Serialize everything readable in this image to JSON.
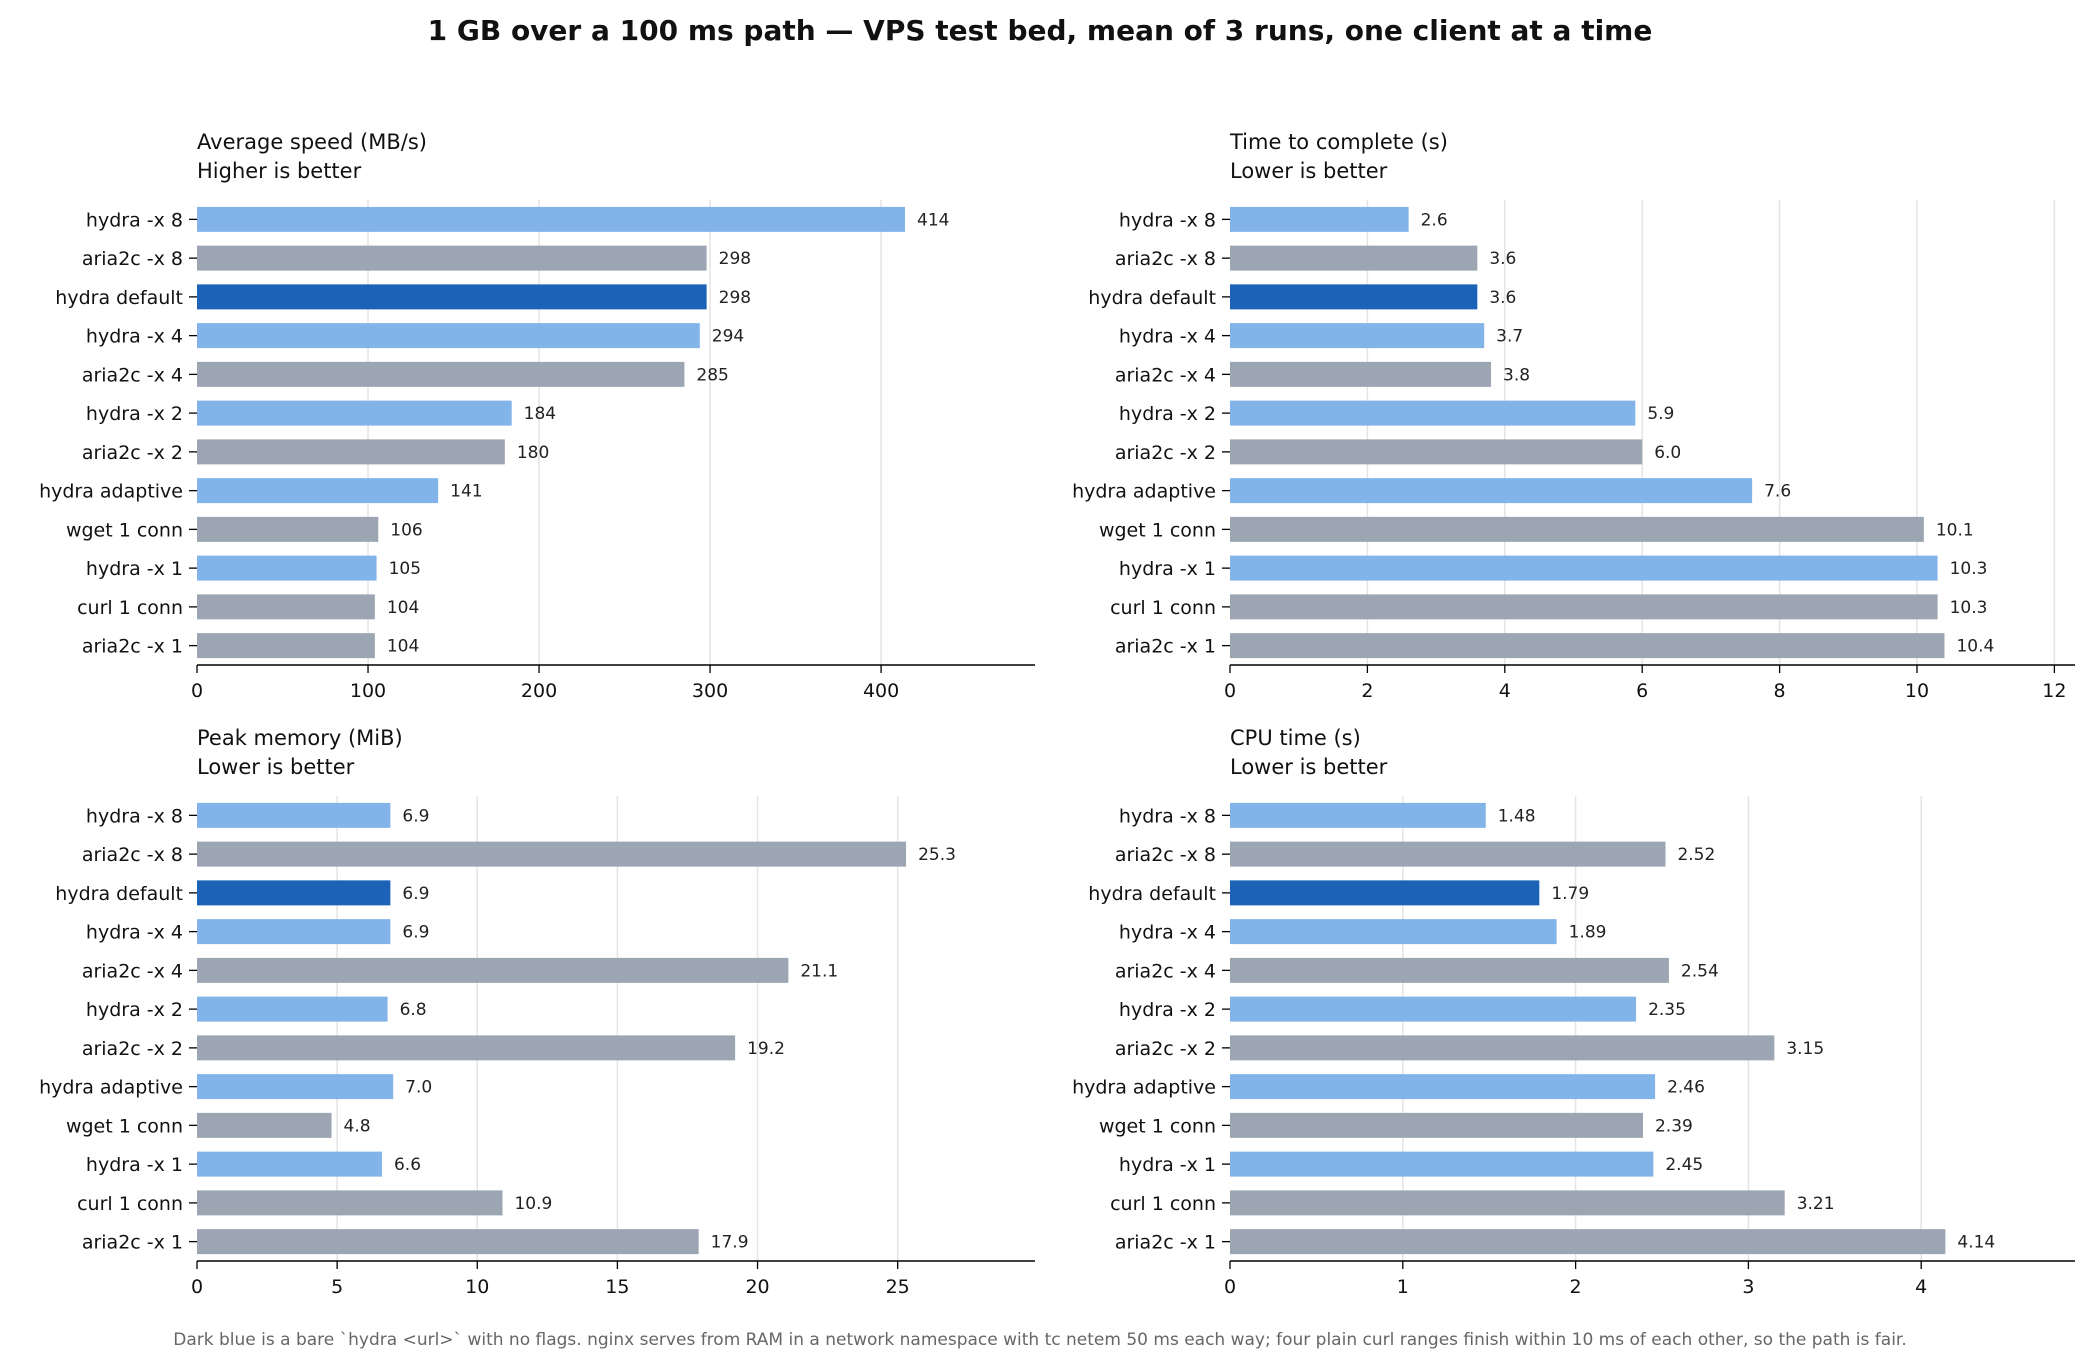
{
  "title": "1 GB over a 100 ms path — VPS test bed, mean of 3 runs, one client at a time",
  "footnote": "Dark blue is a bare `hydra <url>` with no flags. nginx serves from RAM in a network namespace with tc netem 50 ms each way; four plain curl ranges finish within 10 ms of each other, so the path is fair.",
  "colors": {
    "hydra": "#82b4e9",
    "hydra_default": "#1c63b7",
    "other": "#9ca6b2",
    "grid": "#e4e4e4",
    "axis": "#000000"
  },
  "chart_data": [
    {
      "type": "bar",
      "orientation": "horizontal",
      "title": "Average speed (MB/s)",
      "subtitle": "Higher is better",
      "categories": [
        "hydra -x 8",
        "aria2c -x 8",
        "hydra default",
        "hydra -x 4",
        "aria2c -x 4",
        "hydra -x 2",
        "aria2c -x 2",
        "hydra adaptive",
        "wget 1 conn",
        "hydra -x 1",
        "curl 1 conn",
        "aria2c -x 1"
      ],
      "values": [
        414,
        298,
        298,
        294,
        285,
        184,
        180,
        141,
        106,
        105,
        104,
        104
      ],
      "value_labels": [
        "414",
        "298",
        "298",
        "294",
        "285",
        "184",
        "180",
        "141",
        "106",
        "105",
        "104",
        "104"
      ],
      "groups": [
        "hydra",
        "other",
        "hydra_default",
        "hydra",
        "other",
        "hydra",
        "other",
        "hydra",
        "other",
        "hydra",
        "other",
        "other"
      ],
      "xlim": [
        0,
        490
      ],
      "xticks": [
        0,
        100,
        200,
        300,
        400
      ],
      "xtick_labels": [
        "0",
        "100",
        "200",
        "300",
        "400"
      ],
      "grid": "vertical"
    },
    {
      "type": "bar",
      "orientation": "horizontal",
      "title": "Time to complete (s)",
      "subtitle": "Lower is better",
      "categories": [
        "hydra -x 8",
        "aria2c -x 8",
        "hydra default",
        "hydra -x 4",
        "aria2c -x 4",
        "hydra -x 2",
        "aria2c -x 2",
        "hydra adaptive",
        "wget 1 conn",
        "hydra -x 1",
        "curl 1 conn",
        "aria2c -x 1"
      ],
      "values": [
        2.6,
        3.6,
        3.6,
        3.7,
        3.8,
        5.9,
        6.0,
        7.6,
        10.1,
        10.3,
        10.3,
        10.4
      ],
      "value_labels": [
        "2.6",
        "3.6",
        "3.6",
        "3.7",
        "3.8",
        "5.9",
        "6.0",
        "7.6",
        "10.1",
        "10.3",
        "10.3",
        "10.4"
      ],
      "groups": [
        "hydra",
        "other",
        "hydra_default",
        "hydra",
        "other",
        "hydra",
        "other",
        "hydra",
        "other",
        "hydra",
        "other",
        "other"
      ],
      "xlim": [
        0,
        12.3
      ],
      "xticks": [
        0,
        2,
        4,
        6,
        8,
        10,
        12
      ],
      "xtick_labels": [
        "0",
        "2",
        "4",
        "6",
        "8",
        "10",
        "12"
      ],
      "grid": "vertical"
    },
    {
      "type": "bar",
      "orientation": "horizontal",
      "title": "Peak memory (MiB)",
      "subtitle": "Lower is better",
      "categories": [
        "hydra -x 8",
        "aria2c -x 8",
        "hydra default",
        "hydra -x 4",
        "aria2c -x 4",
        "hydra -x 2",
        "aria2c -x 2",
        "hydra adaptive",
        "wget 1 conn",
        "hydra -x 1",
        "curl 1 conn",
        "aria2c -x 1"
      ],
      "values": [
        6.9,
        25.3,
        6.9,
        6.9,
        21.1,
        6.8,
        19.2,
        7.0,
        4.8,
        6.6,
        10.9,
        17.9
      ],
      "value_labels": [
        "6.9",
        "25.3",
        "6.9",
        "6.9",
        "21.1",
        "6.8",
        "19.2",
        "7.0",
        "4.8",
        "6.6",
        "10.9",
        "17.9"
      ],
      "groups": [
        "hydra",
        "other",
        "hydra_default",
        "hydra",
        "other",
        "hydra",
        "other",
        "hydra",
        "other",
        "hydra",
        "other",
        "other"
      ],
      "xlim": [
        0,
        29.9
      ],
      "xticks": [
        0,
        5,
        10,
        15,
        20,
        25
      ],
      "xtick_labels": [
        "0",
        "5",
        "10",
        "15",
        "20",
        "25"
      ],
      "grid": "vertical"
    },
    {
      "type": "bar",
      "orientation": "horizontal",
      "title": "CPU time (s)",
      "subtitle": "Lower is better",
      "categories": [
        "hydra -x 8",
        "aria2c -x 8",
        "hydra default",
        "hydra -x 4",
        "aria2c -x 4",
        "hydra -x 2",
        "aria2c -x 2",
        "hydra adaptive",
        "wget 1 conn",
        "hydra -x 1",
        "curl 1 conn",
        "aria2c -x 1"
      ],
      "values": [
        1.48,
        2.52,
        1.79,
        1.89,
        2.54,
        2.35,
        3.15,
        2.46,
        2.39,
        2.45,
        3.21,
        4.14
      ],
      "value_labels": [
        "1.48",
        "2.52",
        "1.79",
        "1.89",
        "2.54",
        "2.35",
        "3.15",
        "2.46",
        "2.39",
        "2.45",
        "3.21",
        "4.14"
      ],
      "groups": [
        "hydra",
        "other",
        "hydra_default",
        "hydra",
        "other",
        "hydra",
        "other",
        "hydra",
        "other",
        "hydra",
        "other",
        "other"
      ],
      "xlim": [
        0,
        4.89
      ],
      "xticks": [
        0,
        1,
        2,
        3,
        4
      ],
      "xtick_labels": [
        "0",
        "1",
        "2",
        "3",
        "4"
      ],
      "grid": "vertical"
    }
  ]
}
